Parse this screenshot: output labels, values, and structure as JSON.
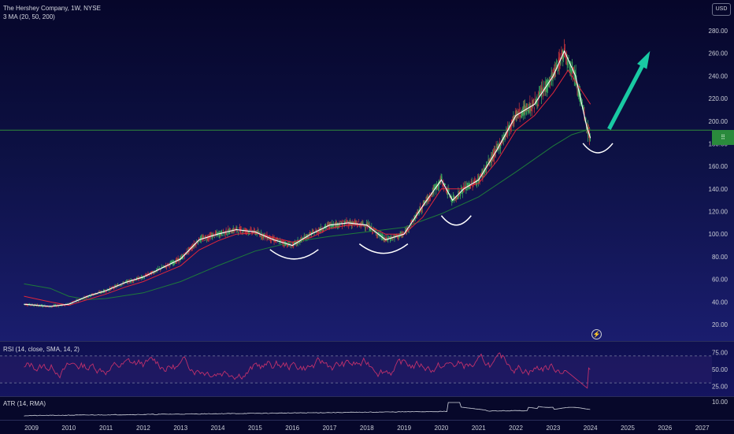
{
  "chart": {
    "symbol_title": "The Hershey Company, 1W, NYSE",
    "indicator_label": "3 MA (20, 50, 200)",
    "currency": "USD",
    "price_ticks": [
      "280.00",
      "260.00",
      "240.00",
      "220.00",
      "200.00",
      "180.00",
      "160.00",
      "140.00",
      "120.00",
      "100.00",
      "80.00",
      "60.00",
      "40.00",
      "20.00"
    ],
    "price_marker_icon": "drag-handle-icon"
  },
  "rsi": {
    "label": "RSI (14, close, SMA, 14, 2)",
    "ticks": [
      "75.00",
      "50.00",
      "25.00"
    ]
  },
  "atr": {
    "label": "ATR (14, RMA)",
    "ticks": [
      "10.00"
    ]
  },
  "time_axis": {
    "years": [
      "2009",
      "2010",
      "2011",
      "2012",
      "2013",
      "2014",
      "2015",
      "2016",
      "2017",
      "2018",
      "2019",
      "2020",
      "2021",
      "2022",
      "2023",
      "2024",
      "2025",
      "2026",
      "2027"
    ]
  },
  "colors": {
    "ma20": "#ffffff",
    "ma50": "#e0263a",
    "ma200": "#1e7a3a",
    "arrow": "#19c9a3",
    "horizontal_line": "#2e8b3a",
    "rsi_line": "#c0306b"
  },
  "chart_data": {
    "type": "line",
    "xlim": [
      2008.75,
      2027.2
    ],
    "ylim": [
      20,
      280
    ],
    "series": [
      {
        "x": [
          2008.8,
          2009.5,
          2010.0,
          2010.5,
          2011.0,
          2011.5,
          2012.0,
          2012.5,
          2013.0,
          2013.5,
          2014.0,
          2014.5,
          2015.0,
          2015.5,
          2016.0,
          2016.5,
          2017.0,
          2017.5,
          2018.0,
          2018.5,
          2019.0,
          2019.5,
          2020.0,
          2020.3,
          2020.6,
          2021.0,
          2021.5,
          2022.0,
          2022.5,
          2023.0,
          2023.3,
          2023.6,
          2023.9,
          2024.0
        ],
        "y": [
          38,
          36,
          38,
          45,
          50,
          57,
          62,
          70,
          78,
          95,
          100,
          104,
          102,
          95,
          90,
          100,
          108,
          110,
          108,
          95,
          100,
          125,
          148,
          130,
          140,
          148,
          175,
          205,
          215,
          240,
          262,
          240,
          195,
          185
        ]
      },
      {
        "x": [
          2008.8,
          2009.5,
          2010.0,
          2010.5,
          2011.0,
          2011.5,
          2012.0,
          2012.5,
          2013.0,
          2013.5,
          2014.0,
          2014.5,
          2015.0,
          2015.5,
          2016.0,
          2016.5,
          2017.0,
          2017.5,
          2018.0,
          2018.5,
          2019.0,
          2019.5,
          2020.0,
          2020.5,
          2021.0,
          2021.5,
          2022.0,
          2022.5,
          2023.0,
          2023.4,
          2023.8,
          2024.0
        ],
        "y": [
          45,
          40,
          37,
          42,
          47,
          53,
          58,
          65,
          72,
          86,
          94,
          100,
          101,
          97,
          93,
          97,
          105,
          108,
          108,
          100,
          100,
          115,
          140,
          140,
          145,
          165,
          192,
          205,
          225,
          245,
          225,
          215
        ]
      },
      {
        "x": [
          2008.8,
          2009.5,
          2010.0,
          2010.5,
          2011.0,
          2012.0,
          2013.0,
          2014.0,
          2015.0,
          2016.0,
          2017.0,
          2018.0,
          2019.0,
          2020.0,
          2021.0,
          2022.0,
          2023.0,
          2023.5,
          2024.0
        ],
        "y": [
          56,
          52,
          45,
          42,
          43,
          48,
          58,
          72,
          85,
          93,
          98,
          102,
          106,
          118,
          133,
          155,
          178,
          188,
          193
        ]
      }
    ],
    "horizontal_line": {
      "y": 192
    },
    "arrow": {
      "from": {
        "x": 2024.5,
        "y": 193
      },
      "to": {
        "x": 2025.6,
        "y": 262
      }
    },
    "arcs": [
      {
        "x_start": 2015.4,
        "x_end": 2016.7,
        "y_min": 78
      },
      {
        "x_start": 2017.8,
        "x_end": 2019.1,
        "y_min": 83
      },
      {
        "x_start": 2020.0,
        "x_end": 2020.8,
        "y_min": 108
      },
      {
        "x_start": 2023.8,
        "x_end": 2024.6,
        "y_min": 172
      }
    ]
  }
}
